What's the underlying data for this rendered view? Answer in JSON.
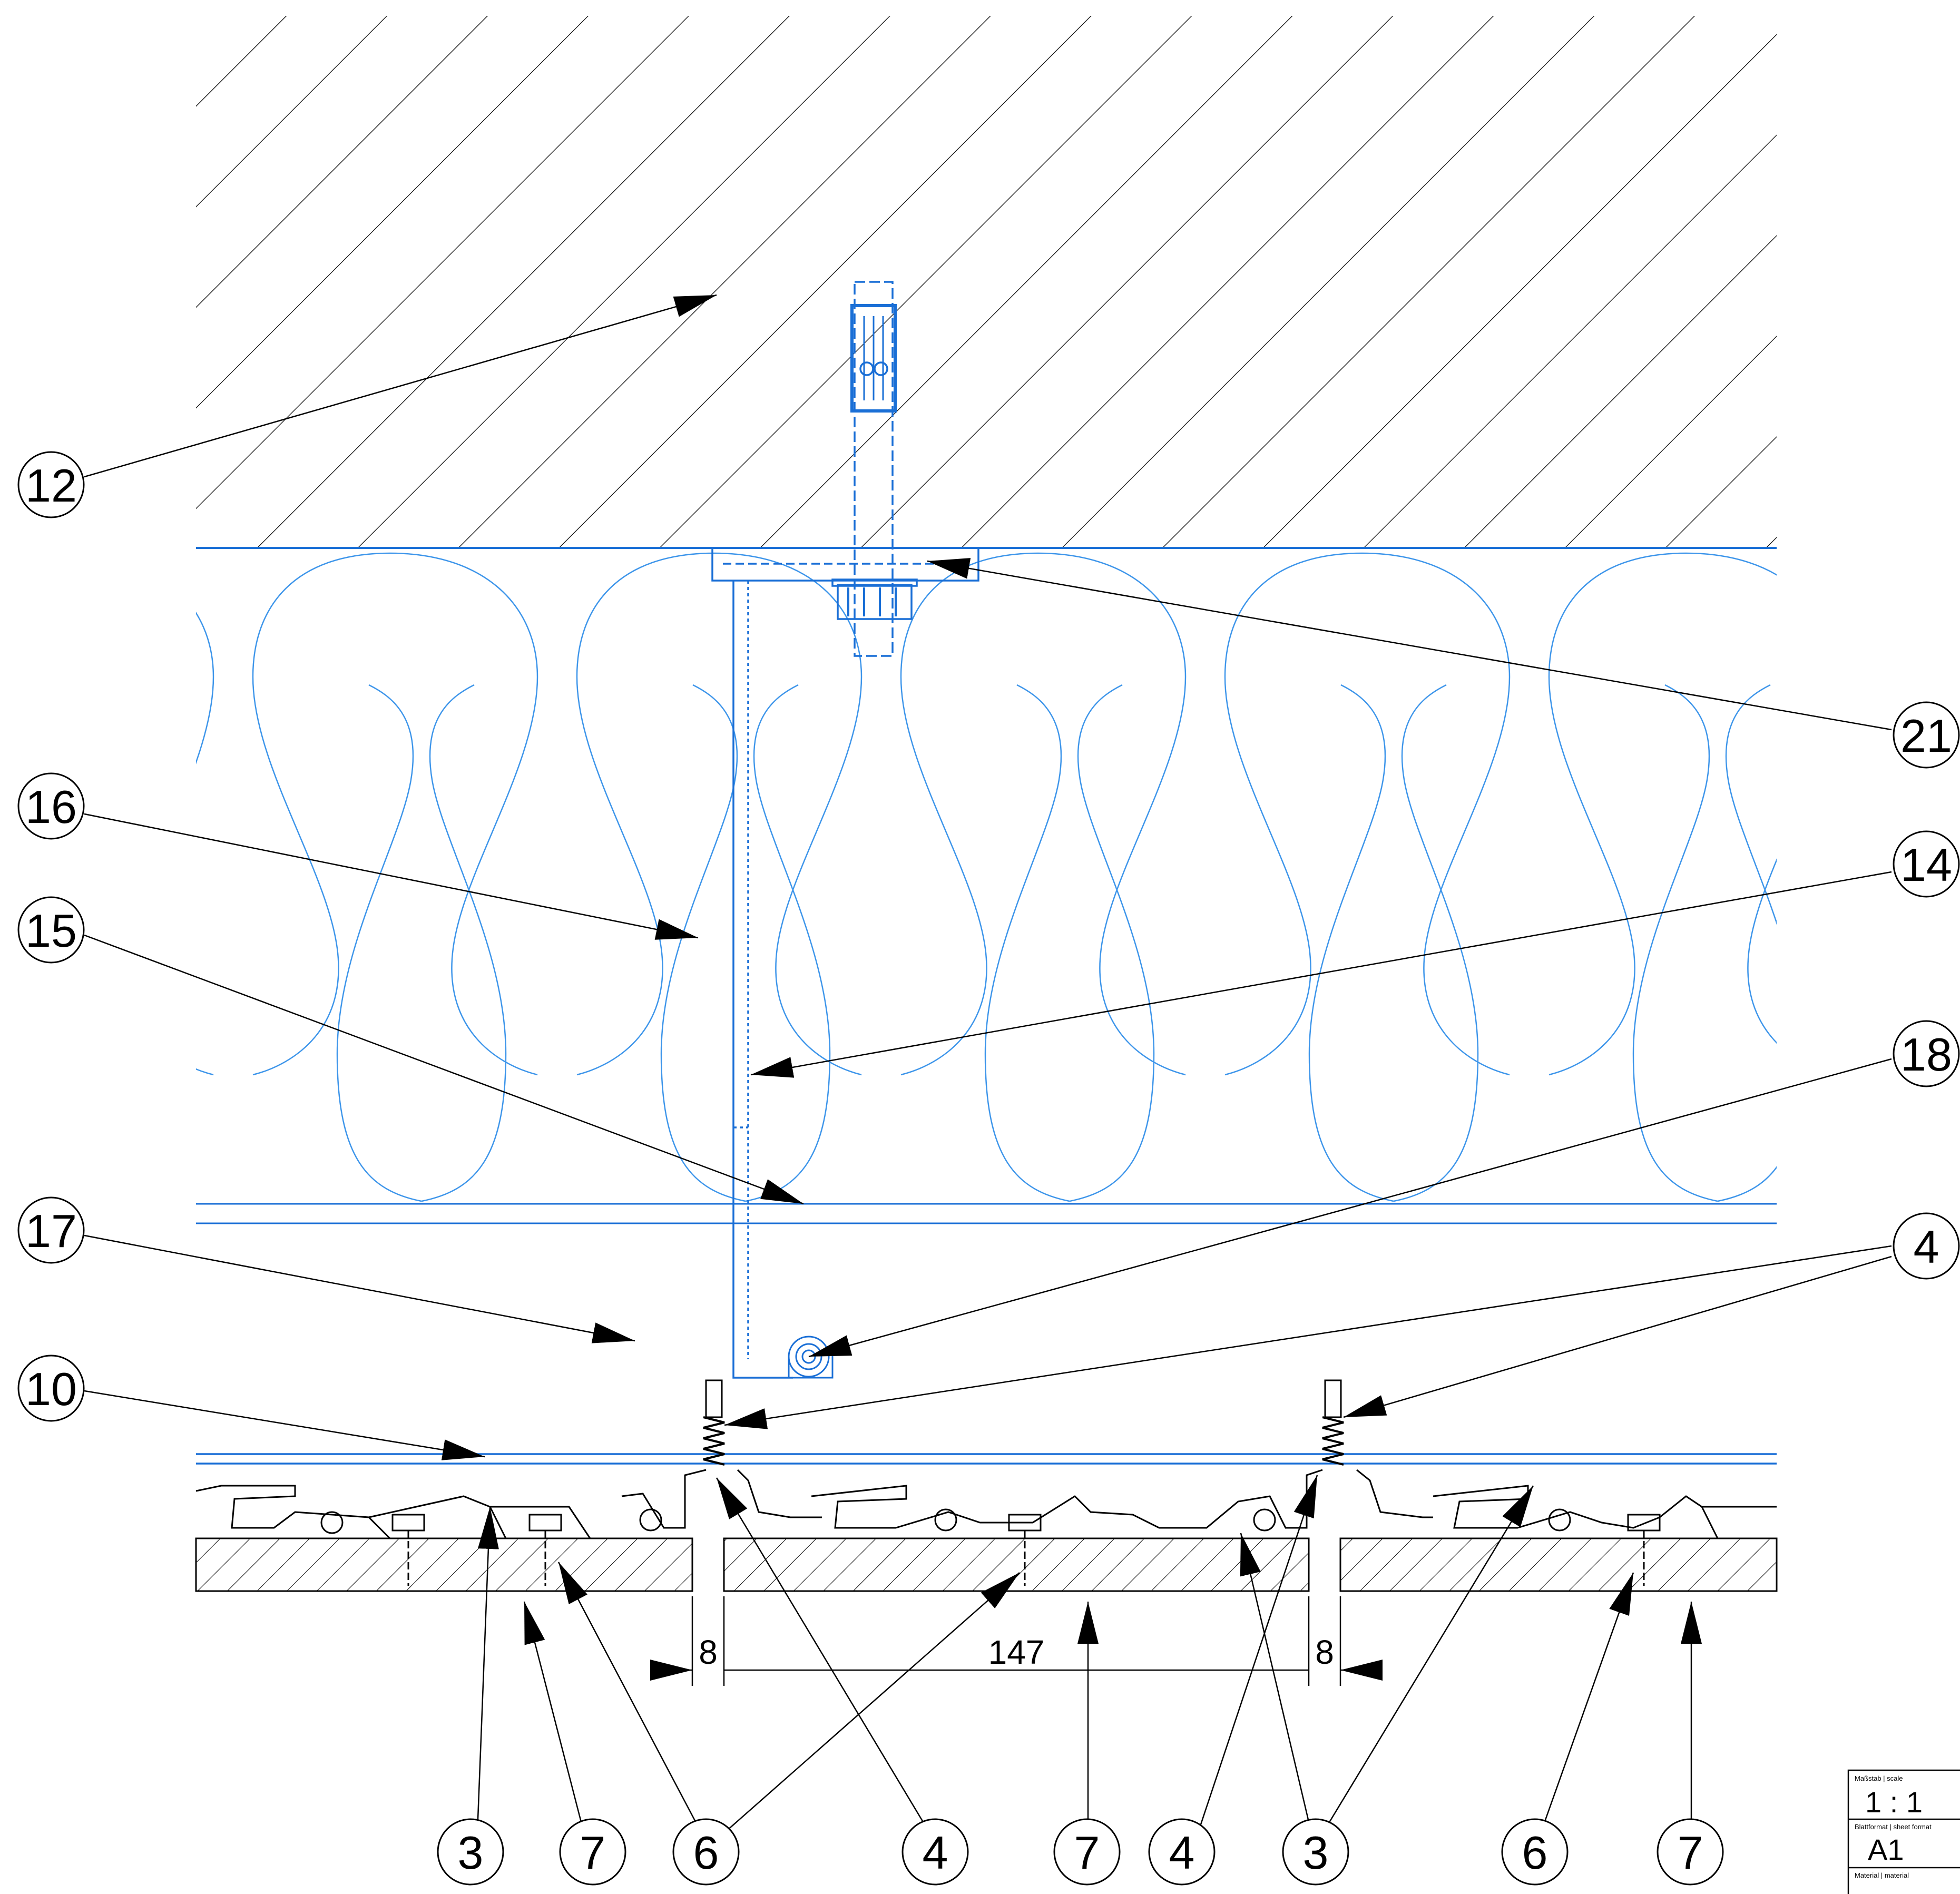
{
  "callouts": {
    "c12": "12",
    "c21": "21",
    "c16": "16",
    "c14": "14",
    "c15": "15",
    "c18": "18",
    "c17": "17",
    "c4r": "4",
    "c10": "10",
    "b3a": "3",
    "b7a": "7",
    "b6a": "6",
    "b4a": "4",
    "b7b": "7",
    "b4b": "4",
    "b3b": "3",
    "b6b": "6",
    "b7c": "7"
  },
  "dimensions": {
    "gap_left": "8",
    "module": "147",
    "gap_right": "8"
  },
  "title_block": {
    "scale_label": "Maßstab | scale",
    "scale_value": "1 : 1",
    "format_label": "Blattformat | sheet format",
    "format_value": "A1",
    "material_label": "Material | material"
  },
  "colors": {
    "line": "#000000",
    "blue": "#1a6fd6",
    "blue_light": "#3d95ea"
  }
}
